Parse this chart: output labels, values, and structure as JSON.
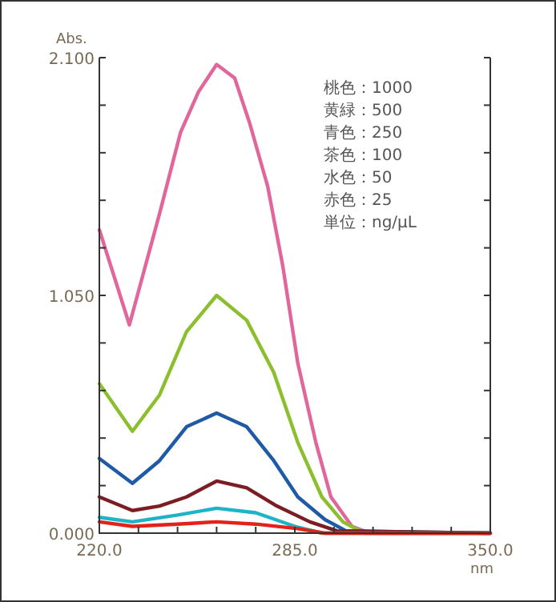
{
  "chart_data": {
    "type": "line",
    "xlabel": "nm",
    "ylabel": "Abs.",
    "annotations": [
      "桃色：1000",
      "黄緑：500",
      "青色：250",
      "茶色：100",
      "水色：50",
      "赤色：25",
      "単位：ng/μL"
    ],
    "xlim": [
      220,
      350
    ],
    "ylim": [
      0,
      2.1
    ],
    "xticks": [
      {
        "value": 220,
        "label": "220.0"
      },
      {
        "value": 233,
        "label": null
      },
      {
        "value": 246,
        "label": null
      },
      {
        "value": 259,
        "label": null
      },
      {
        "value": 272,
        "label": null
      },
      {
        "value": 285,
        "label": "285.0"
      },
      {
        "value": 298,
        "label": null
      },
      {
        "value": 311,
        "label": null
      },
      {
        "value": 324,
        "label": null
      },
      {
        "value": 337,
        "label": null
      },
      {
        "value": 350,
        "label": "350.0"
      }
    ],
    "yticks": [
      {
        "value": 0,
        "label": "0.000"
      },
      {
        "value": 0.21,
        "label": null
      },
      {
        "value": 0.42,
        "label": null
      },
      {
        "value": 0.63,
        "label": null
      },
      {
        "value": 0.84,
        "label": null
      },
      {
        "value": 1.05,
        "label": "1.050"
      },
      {
        "value": 1.26,
        "label": null
      },
      {
        "value": 1.47,
        "label": null
      },
      {
        "value": 1.68,
        "label": null
      },
      {
        "value": 1.89,
        "label": null
      },
      {
        "value": 2.1,
        "label": "2.100"
      }
    ],
    "series": [
      {
        "color": "#e0669b",
        "x": [
          220,
          230,
          240,
          247,
          253,
          259,
          265,
          270,
          276,
          281,
          286,
          292,
          297,
          304,
          310,
          350
        ],
        "values": [
          1.34,
          0.92,
          1.41,
          1.77,
          1.95,
          2.07,
          2.01,
          1.81,
          1.53,
          1.18,
          0.75,
          0.4,
          0.16,
          0.03,
          0.0,
          0.0
        ]
      },
      {
        "color": "#8cbf2e",
        "x": [
          220,
          231,
          240,
          249,
          259,
          269,
          278,
          286,
          294,
          301,
          308,
          350
        ],
        "values": [
          0.66,
          0.45,
          0.61,
          0.89,
          1.05,
          0.94,
          0.71,
          0.4,
          0.16,
          0.05,
          0.0,
          0.0
        ]
      },
      {
        "color": "#1f5aa6",
        "x": [
          220,
          231,
          240,
          249,
          259,
          269,
          278,
          286,
          295,
          302,
          350
        ],
        "values": [
          0.33,
          0.22,
          0.32,
          0.47,
          0.53,
          0.47,
          0.32,
          0.16,
          0.06,
          0.01,
          0.0
        ]
      },
      {
        "color": "#7b1d22",
        "x": [
          220,
          231,
          240,
          249,
          259,
          269,
          279,
          290,
          299,
          350
        ],
        "values": [
          0.16,
          0.1,
          0.12,
          0.16,
          0.23,
          0.2,
          0.12,
          0.05,
          0.01,
          0.0
        ]
      },
      {
        "color": "#1fb3c7",
        "x": [
          220,
          231,
          246,
          259,
          272,
          285,
          294,
          350
        ],
        "values": [
          0.07,
          0.05,
          0.08,
          0.11,
          0.09,
          0.03,
          0.0,
          0.0
        ]
      },
      {
        "color": "#e2231a",
        "x": [
          220,
          231,
          246,
          259,
          272,
          286,
          295,
          350
        ],
        "values": [
          0.05,
          0.03,
          0.04,
          0.05,
          0.04,
          0.02,
          0.0,
          0.0
        ]
      }
    ]
  }
}
